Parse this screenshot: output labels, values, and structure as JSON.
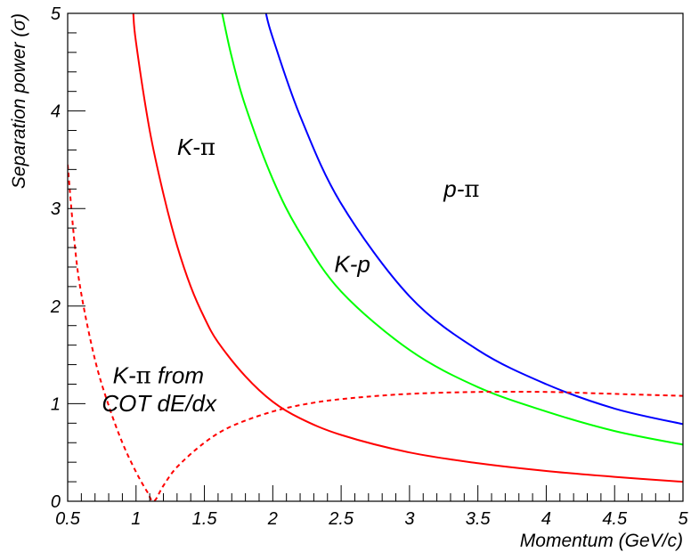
{
  "chart_data": {
    "type": "line",
    "xlabel": "Momentum (GeV/c)",
    "ylabel": "Separation power (σ)",
    "xlim": [
      0.5,
      5
    ],
    "ylim": [
      0,
      5
    ],
    "x_ticks": [
      "0.5",
      "1",
      "1.5",
      "2",
      "2.5",
      "3",
      "3.5",
      "4",
      "4.5",
      "5"
    ],
    "y_ticks": [
      "0",
      "1",
      "2",
      "3",
      "4",
      "5"
    ],
    "grid": false,
    "legend": "none",
    "series": [
      {
        "key": "k_pi",
        "color": "#ff0000",
        "style": "solid",
        "x": [
          0.98,
          1.0,
          1.1,
          1.2,
          1.3,
          1.4,
          1.5,
          1.6,
          1.8,
          2.0,
          2.2,
          2.5,
          3.0,
          3.5,
          4.0,
          4.5,
          5.0
        ],
        "y": [
          5.0,
          4.7,
          3.8,
          3.15,
          2.62,
          2.2,
          1.88,
          1.63,
          1.28,
          1.02,
          0.85,
          0.68,
          0.5,
          0.39,
          0.31,
          0.25,
          0.2
        ]
      },
      {
        "key": "k_p",
        "color": "#00ff00",
        "style": "solid",
        "x": [
          1.63,
          1.7,
          1.8,
          2.0,
          2.2,
          2.5,
          3.0,
          3.5,
          4.0,
          4.5,
          5.0
        ],
        "y": [
          5.0,
          4.55,
          4.05,
          3.3,
          2.75,
          2.15,
          1.55,
          1.17,
          0.92,
          0.72,
          0.58
        ]
      },
      {
        "key": "p_pi",
        "color": "#0000ff",
        "style": "solid",
        "x": [
          1.95,
          2.0,
          2.2,
          2.5,
          3.0,
          3.5,
          4.0,
          4.5,
          5.0
        ],
        "y": [
          5.0,
          4.75,
          3.95,
          3.05,
          2.1,
          1.55,
          1.2,
          0.95,
          0.79
        ]
      },
      {
        "key": "k_pi_cot",
        "color": "#ff0000",
        "style": "dashed",
        "x": [
          0.5,
          0.55,
          0.6,
          0.7,
          0.8,
          0.9,
          1.0,
          1.08,
          1.13,
          1.2,
          1.3,
          1.5,
          1.7,
          2.0,
          2.3,
          2.6,
          3.0,
          3.5,
          4.0,
          4.5,
          5.0
        ],
        "y": [
          3.45,
          2.65,
          2.12,
          1.45,
          0.98,
          0.6,
          0.3,
          0.1,
          0.0,
          0.16,
          0.35,
          0.6,
          0.77,
          0.92,
          1.01,
          1.06,
          1.1,
          1.12,
          1.12,
          1.1,
          1.08
        ]
      }
    ],
    "annotations": [
      {
        "key": "k_pi",
        "text": "K-",
        "pi": true,
        "x": 1.3,
        "y": 3.55
      },
      {
        "key": "p_pi",
        "text": "p-",
        "pi": true,
        "x": 3.25,
        "y": 3.12
      },
      {
        "key": "k_p",
        "text": "K-p",
        "pi": false,
        "x": 2.45,
        "y": 2.35
      },
      {
        "key": "k_pi_cot_1",
        "text": "K-",
        "pi": true,
        "suffix": " from",
        "x": 0.83,
        "y": 1.21
      },
      {
        "key": "k_pi_cot_2",
        "text": "COT dE/dx",
        "pi": false,
        "x": 0.75,
        "y": 0.92
      }
    ]
  }
}
